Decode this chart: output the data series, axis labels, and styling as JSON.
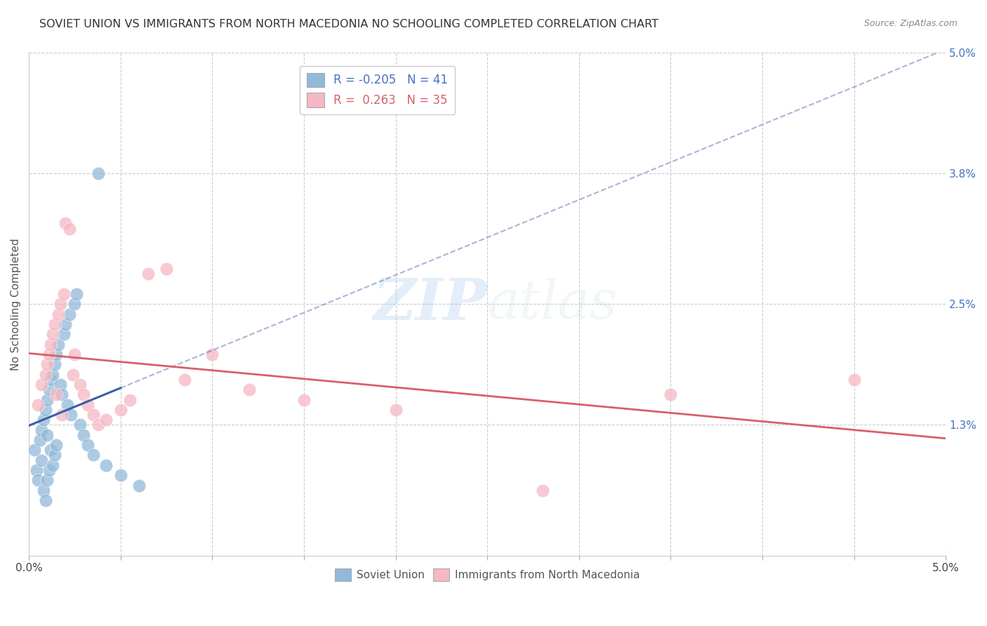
{
  "title": "SOVIET UNION VS IMMIGRANTS FROM NORTH MACEDONIA NO SCHOOLING COMPLETED CORRELATION CHART",
  "source": "Source: ZipAtlas.com",
  "ylabel": "No Schooling Completed",
  "xlim": [
    0.0,
    5.0
  ],
  "ylim": [
    0.0,
    5.0
  ],
  "right_yticks": [
    0.0,
    1.3,
    2.5,
    3.8,
    5.0
  ],
  "right_ytick_labels": [
    "",
    "1.3%",
    "2.5%",
    "3.8%",
    "5.0%"
  ],
  "x_tick_positions": [
    0.0,
    0.5,
    1.0,
    1.5,
    2.0,
    2.5,
    3.0,
    3.5,
    4.0,
    4.5,
    5.0
  ],
  "legend_r1": "R = -0.205   N = 41",
  "legend_r2": "R =  0.263   N = 35",
  "blue_scatter_color": "#92b9d9",
  "pink_scatter_color": "#f5b8c4",
  "blue_line_color": "#3a5fa8",
  "pink_line_color": "#d95f6a",
  "grid_color": "#cccccc",
  "background_color": "#ffffff",
  "soviet_union_x": [
    0.03,
    0.04,
    0.05,
    0.06,
    0.07,
    0.07,
    0.08,
    0.08,
    0.09,
    0.09,
    0.1,
    0.1,
    0.1,
    0.11,
    0.11,
    0.12,
    0.12,
    0.13,
    0.13,
    0.14,
    0.14,
    0.15,
    0.15,
    0.16,
    0.17,
    0.18,
    0.19,
    0.2,
    0.21,
    0.22,
    0.23,
    0.25,
    0.26,
    0.28,
    0.3,
    0.32,
    0.35,
    0.38,
    0.42,
    0.5,
    0.6
  ],
  "soviet_union_y": [
    1.05,
    0.85,
    0.75,
    1.15,
    1.25,
    0.95,
    1.35,
    0.65,
    1.45,
    0.55,
    1.55,
    1.2,
    0.75,
    1.65,
    0.85,
    1.75,
    1.05,
    1.8,
    0.9,
    1.9,
    1.0,
    2.0,
    1.1,
    2.1,
    1.7,
    1.6,
    2.2,
    2.3,
    1.5,
    2.4,
    1.4,
    2.5,
    2.6,
    1.3,
    1.2,
    1.1,
    1.0,
    3.8,
    0.9,
    0.8,
    0.7
  ],
  "macedonia_x": [
    0.05,
    0.07,
    0.09,
    0.1,
    0.11,
    0.12,
    0.13,
    0.14,
    0.15,
    0.16,
    0.17,
    0.18,
    0.19,
    0.2,
    0.22,
    0.24,
    0.25,
    0.28,
    0.3,
    0.32,
    0.35,
    0.38,
    0.42,
    0.5,
    0.55,
    0.65,
    0.75,
    0.85,
    1.0,
    1.2,
    1.5,
    2.0,
    2.8,
    3.5,
    4.5
  ],
  "macedonia_y": [
    1.5,
    1.7,
    1.8,
    1.9,
    2.0,
    2.1,
    2.2,
    2.3,
    1.6,
    2.4,
    2.5,
    1.4,
    2.6,
    3.3,
    3.25,
    1.8,
    2.0,
    1.7,
    1.6,
    1.5,
    1.4,
    1.3,
    1.35,
    1.45,
    1.55,
    2.8,
    2.85,
    1.75,
    2.0,
    1.65,
    1.55,
    1.45,
    0.65,
    1.6,
    1.75
  ],
  "blue_solid_xend": 0.5,
  "watermark_zip": "ZIP",
  "watermark_atlas": "atlas"
}
